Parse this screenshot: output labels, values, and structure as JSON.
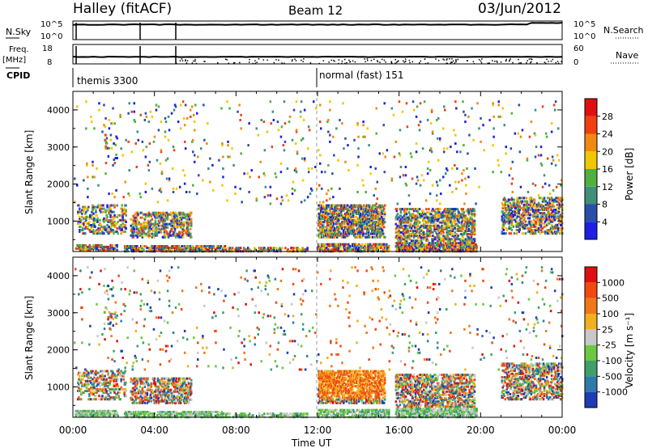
{
  "header": {
    "station": "Halley (fitACF)",
    "beam": "Beam 12",
    "date": "03/Jun/2012"
  },
  "top_panels": {
    "nsky": {
      "left_label": "N.Sky",
      "left_tick_top": "10^5",
      "left_tick_bottom": "10^0",
      "right_label": "N.Search",
      "right_tick_top": "10^5",
      "right_tick_bottom": "10^0"
    },
    "freq": {
      "left_label_1": "Freq.",
      "left_label_2": "[MHz]",
      "left_tick_top": "18",
      "left_tick_bottom": "8",
      "right_label": "Nave",
      "right_tick_top": "60",
      "right_tick_bottom": "0"
    },
    "cpid": {
      "label": "CPID",
      "modes": [
        {
          "name": "themis 3300",
          "start_hour": 0
        },
        {
          "name": "normal (fast) 151",
          "start_hour": 12
        }
      ]
    }
  },
  "chart_data": [
    {
      "type": "heatmap",
      "title": "",
      "xlabel": "",
      "ylabel": "Slant Range [km]",
      "xlim": [
        0,
        24
      ],
      "ylim": [
        180,
        4500
      ],
      "x_ticks": [
        0,
        4,
        8,
        12,
        16,
        20,
        24
      ],
      "y_ticks": [
        1000,
        2000,
        3000,
        4000
      ],
      "colorbar": {
        "label": "Power [dB]",
        "ticks": [
          "4",
          "8",
          "12",
          "16",
          "20",
          "24",
          "28"
        ],
        "colors": [
          "#1e1ee6",
          "#2a4fa8",
          "#3f8f7a",
          "#50b040",
          "#f0c800",
          "#f08a10",
          "#f04010",
          "#e01010"
        ]
      }
    },
    {
      "type": "heatmap",
      "title": "",
      "xlabel": "Time UT",
      "ylabel": "Slant Range [km]",
      "xlim": [
        0,
        24
      ],
      "ylim": [
        180,
        4500
      ],
      "x_ticks": [
        0,
        4,
        8,
        12,
        16,
        20,
        24
      ],
      "y_ticks": [
        1000,
        2000,
        3000,
        4000
      ],
      "x_tick_labels": [
        "00:00",
        "04:00",
        "08:00",
        "12:00",
        "16:00",
        "20:00",
        "00:00"
      ],
      "colorbar": {
        "label": "Velocity [m s⁻¹]",
        "ticks": [
          "1000",
          "500",
          "100",
          "25",
          "-25",
          "-100",
          "-500",
          "-1000"
        ],
        "colors": [
          "#1e3cb4",
          "#2f7aa8",
          "#3f9f6a",
          "#6cc840",
          "#c8c8c8",
          "#f0b020",
          "#f07818",
          "#f04a10",
          "#e01010"
        ]
      }
    }
  ]
}
